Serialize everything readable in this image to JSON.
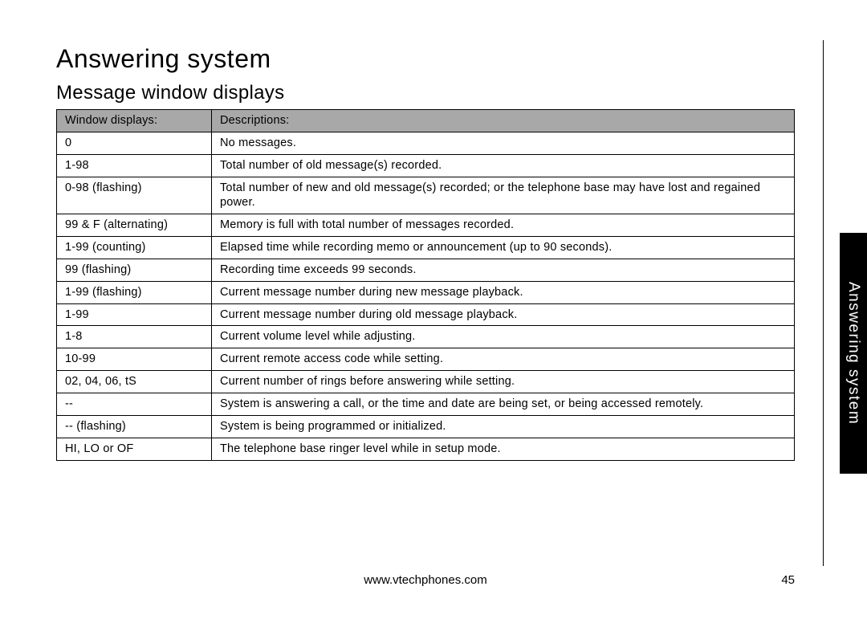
{
  "section_title": "Answering system",
  "subsection_title": "Message window displays",
  "side_tab": "Answering system",
  "footer_url": "www.vtechphones.com",
  "page_number": "45",
  "table": {
    "header": {
      "col1": "Window displays:",
      "col2": "Descriptions:"
    },
    "rows": [
      {
        "display": "0",
        "description": "No messages."
      },
      {
        "display": "1-98",
        "description": "Total number of old message(s) recorded."
      },
      {
        "display": "0-98 (flashing)",
        "description": "Total number of new and old message(s) recorded; or the telephone base may have lost and regained power."
      },
      {
        "display": "99 & F (alternating)",
        "description": "Memory is full with total number of messages recorded."
      },
      {
        "display": "1-99 (counting)",
        "description": "Elapsed time while recording memo or announcement (up to 90 seconds).",
        "justify": true
      },
      {
        "display": "99 (flashing)",
        "description": "Recording time exceeds 99 seconds."
      },
      {
        "display": "1-99 (flashing)",
        "description": "Current message number during new message playback."
      },
      {
        "display": "1-99",
        "description": "Current message number during old message playback."
      },
      {
        "display": "1-8",
        "description": "Current volume level while adjusting."
      },
      {
        "display": "10-99",
        "description": "Current remote access code while setting."
      },
      {
        "display": "02, 04, 06, tS",
        "description": "Current number of rings before answering while setting."
      },
      {
        "display": "--",
        "description": "System is answering a call, or the time and date are being set, or being accessed remotely."
      },
      {
        "display": "-- (flashing)",
        "description": "System is being programmed or initialized."
      },
      {
        "display": "HI, LO or OF",
        "description": "The telephone base ringer level while in setup mode."
      }
    ]
  },
  "colors": {
    "header_bg": "#a8a8a8",
    "border": "#000000",
    "tab_bg": "#000000",
    "tab_text": "#ffffff",
    "background": "#ffffff",
    "text": "#000000"
  },
  "typography": {
    "section_title_size": 32,
    "subsection_title_size": 24,
    "table_text_size": 14.5,
    "footer_size": 15,
    "tab_size": 19
  },
  "layout": {
    "col_display_width_pct": 21,
    "col_desc_width_pct": 79
  }
}
